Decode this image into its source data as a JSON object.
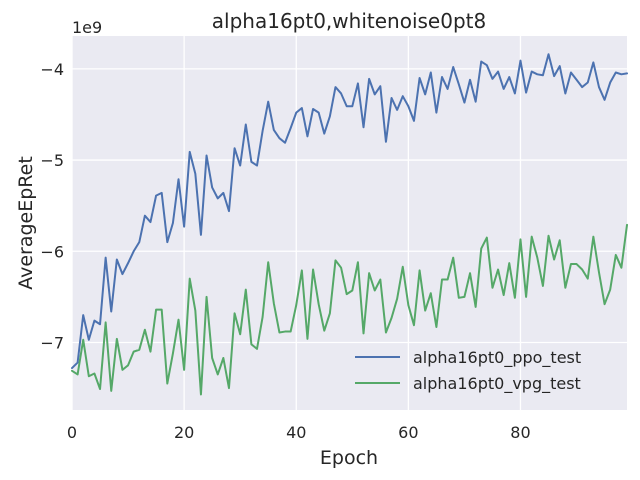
{
  "chart_data": {
    "type": "line",
    "title": "alpha16pt0,whitenoise0pt8",
    "xlabel": "Epoch",
    "ylabel": "AverageEpRet",
    "offset_label": "1e9",
    "scale": 1000000000,
    "xlim": [
      0,
      99
    ],
    "ylim": [
      -7.74,
      -3.64
    ],
    "xticks": [
      0,
      20,
      40,
      60,
      80
    ],
    "yticks": [
      -7,
      -6,
      -5,
      -4
    ],
    "grid": true,
    "legend_position": "lower-right",
    "background": "#eaeaf2",
    "series": [
      {
        "name": "alpha16pt0_ppo_test",
        "color": "#4c72b0",
        "y": [
          -7.28,
          -7.22,
          -6.7,
          -6.97,
          -6.76,
          -6.8,
          -6.07,
          -6.66,
          -6.09,
          -6.25,
          -6.13,
          -6.0,
          -5.9,
          -5.61,
          -5.68,
          -5.39,
          -5.36,
          -5.9,
          -5.69,
          -5.21,
          -5.73,
          -4.91,
          -5.15,
          -5.82,
          -4.95,
          -5.3,
          -5.42,
          -5.36,
          -5.56,
          -4.87,
          -5.06,
          -4.61,
          -5.02,
          -5.06,
          -4.68,
          -4.36,
          -4.67,
          -4.76,
          -4.81,
          -4.65,
          -4.48,
          -4.43,
          -4.74,
          -4.44,
          -4.48,
          -4.71,
          -4.52,
          -4.2,
          -4.27,
          -4.41,
          -4.41,
          -4.16,
          -4.64,
          -4.11,
          -4.28,
          -4.19,
          -4.8,
          -4.32,
          -4.45,
          -4.3,
          -4.41,
          -4.57,
          -4.1,
          -4.28,
          -4.04,
          -4.48,
          -4.09,
          -4.22,
          -3.98,
          -4.17,
          -4.37,
          -4.12,
          -4.36,
          -3.92,
          -3.96,
          -4.11,
          -4.03,
          -4.22,
          -4.09,
          -4.27,
          -3.91,
          -4.26,
          -4.03,
          -4.06,
          -4.07,
          -3.84,
          -4.08,
          -3.97,
          -4.27,
          -4.04,
          -4.12,
          -4.2,
          -4.15,
          -3.93,
          -4.2,
          -4.34,
          -4.15,
          -4.04,
          -4.06,
          -4.05
        ]
      },
      {
        "name": "alpha16pt0_vpg_test",
        "color": "#55a868",
        "y": [
          -7.31,
          -7.35,
          -6.97,
          -7.37,
          -7.34,
          -7.51,
          -6.78,
          -7.53,
          -6.96,
          -7.3,
          -7.25,
          -7.1,
          -7.08,
          -6.86,
          -7.1,
          -6.64,
          -6.64,
          -7.45,
          -7.12,
          -6.75,
          -7.3,
          -6.3,
          -6.65,
          -7.57,
          -6.5,
          -7.17,
          -7.35,
          -7.17,
          -7.5,
          -6.68,
          -6.91,
          -6.42,
          -7.02,
          -7.07,
          -6.72,
          -6.12,
          -6.57,
          -6.89,
          -6.88,
          -6.88,
          -6.59,
          -6.21,
          -6.96,
          -6.2,
          -6.58,
          -6.87,
          -6.68,
          -6.1,
          -6.18,
          -6.47,
          -6.43,
          -6.12,
          -6.9,
          -6.24,
          -6.43,
          -6.31,
          -6.89,
          -6.73,
          -6.52,
          -6.17,
          -6.59,
          -6.81,
          -6.21,
          -6.65,
          -6.46,
          -6.83,
          -6.31,
          -6.31,
          -6.07,
          -6.51,
          -6.5,
          -6.24,
          -6.61,
          -5.97,
          -5.85,
          -6.4,
          -6.2,
          -6.48,
          -6.13,
          -6.51,
          -5.87,
          -6.5,
          -5.84,
          -6.07,
          -6.38,
          -5.83,
          -6.09,
          -5.88,
          -6.4,
          -6.14,
          -6.14,
          -6.2,
          -6.3,
          -5.84,
          -6.23,
          -6.58,
          -6.42,
          -6.04,
          -6.18,
          -5.71
        ]
      }
    ]
  }
}
